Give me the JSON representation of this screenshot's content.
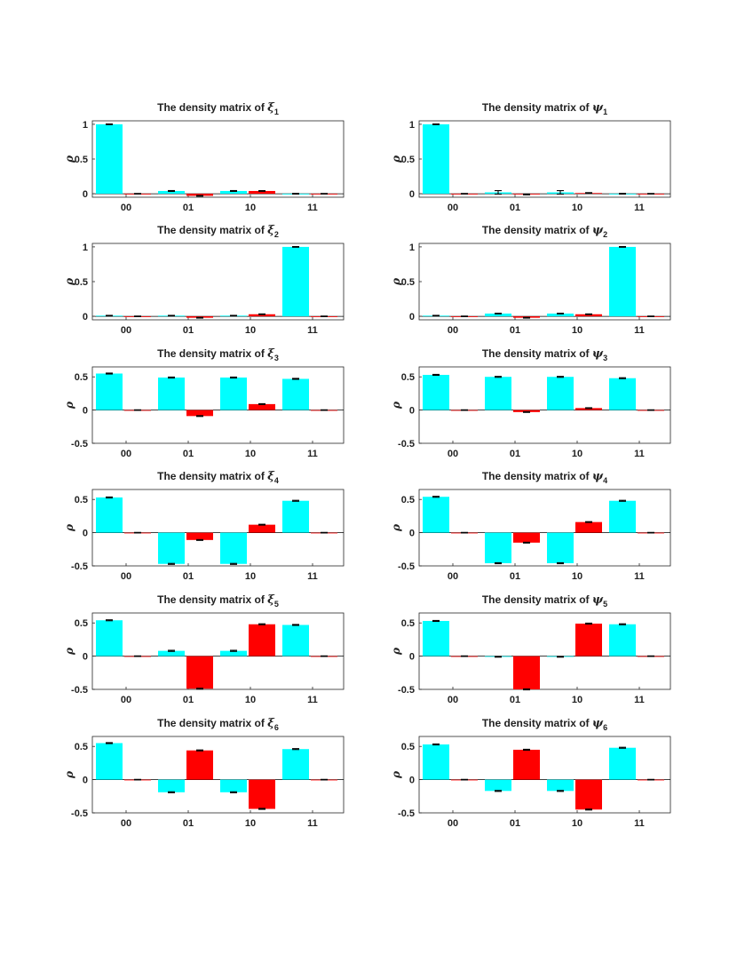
{
  "chart_data": [
    {
      "type": "bar",
      "title_prefix": "The density matrix of ",
      "symbol": "ξ",
      "subscript": "1",
      "ylabel": "ρ",
      "categories": [
        "00",
        "01",
        "10",
        "11"
      ],
      "ylim": [
        -0.05,
        1.05
      ],
      "yticks": [
        "0",
        "0.5",
        "1"
      ],
      "ytick_values": [
        0,
        0.5,
        1
      ],
      "series": [
        {
          "name": "cyan",
          "color": "#00ffff",
          "values": [
            1.0,
            0.04,
            0.04,
            0.0
          ],
          "errors": [
            0.005,
            0.006,
            0.006,
            0.005
          ]
        },
        {
          "name": "red",
          "color": "#ff0000",
          "values": [
            0.0,
            -0.03,
            0.04,
            0.0
          ],
          "errors": [
            0.004,
            0.005,
            0.005,
            0.004
          ]
        }
      ]
    },
    {
      "type": "bar",
      "title_prefix": "The density matrix of ",
      "symbol": "ψ",
      "subscript": "1",
      "ylabel": "ρ",
      "categories": [
        "00",
        "01",
        "10",
        "11"
      ],
      "ylim": [
        -0.05,
        1.05
      ],
      "yticks": [
        "0",
        "0.5",
        "1"
      ],
      "ytick_values": [
        0,
        0.5,
        1
      ],
      "series": [
        {
          "name": "cyan",
          "color": "#00ffff",
          "values": [
            1.0,
            0.02,
            0.02,
            0.0
          ],
          "errors": [
            0.005,
            0.025,
            0.025,
            0.005
          ]
        },
        {
          "name": "red",
          "color": "#ff0000",
          "values": [
            0.0,
            -0.01,
            0.01,
            0.0
          ],
          "errors": [
            0.004,
            0.006,
            0.006,
            0.004
          ]
        }
      ]
    },
    {
      "type": "bar",
      "title_prefix": "The density matrix of ",
      "symbol": "ξ",
      "subscript": "2",
      "ylabel": "ρ",
      "categories": [
        "00",
        "01",
        "10",
        "11"
      ],
      "ylim": [
        -0.05,
        1.05
      ],
      "yticks": [
        "0",
        "0.5",
        "1"
      ],
      "ytick_values": [
        0,
        0.5,
        1
      ],
      "series": [
        {
          "name": "cyan",
          "color": "#00ffff",
          "values": [
            0.01,
            0.01,
            0.01,
            1.0
          ],
          "errors": [
            0.004,
            0.004,
            0.004,
            0.005
          ]
        },
        {
          "name": "red",
          "color": "#ff0000",
          "values": [
            0.0,
            -0.02,
            0.03,
            0.0
          ],
          "errors": [
            0.004,
            0.005,
            0.005,
            0.004
          ]
        }
      ]
    },
    {
      "type": "bar",
      "title_prefix": "The density matrix of ",
      "symbol": "ψ",
      "subscript": "2",
      "ylabel": "ρ",
      "categories": [
        "00",
        "01",
        "10",
        "11"
      ],
      "ylim": [
        -0.05,
        1.05
      ],
      "yticks": [
        "0",
        "0.5",
        "1"
      ],
      "ytick_values": [
        0,
        0.5,
        1
      ],
      "series": [
        {
          "name": "cyan",
          "color": "#00ffff",
          "values": [
            0.01,
            0.04,
            0.04,
            1.0
          ],
          "errors": [
            0.004,
            0.005,
            0.005,
            0.005
          ]
        },
        {
          "name": "red",
          "color": "#ff0000",
          "values": [
            0.0,
            -0.02,
            0.03,
            0.0
          ],
          "errors": [
            0.004,
            0.005,
            0.005,
            0.004
          ]
        }
      ]
    },
    {
      "type": "bar",
      "title_prefix": "The density matrix of ",
      "symbol": "ξ",
      "subscript": "3",
      "ylabel": "ρ",
      "categories": [
        "00",
        "01",
        "10",
        "11"
      ],
      "ylim": [
        -0.5,
        0.65
      ],
      "yticks": [
        "-0.5",
        "0",
        "0.5"
      ],
      "ytick_values": [
        -0.5,
        0,
        0.5
      ],
      "series": [
        {
          "name": "cyan",
          "color": "#00ffff",
          "values": [
            0.55,
            0.49,
            0.49,
            0.47
          ],
          "errors": [
            0.007,
            0.007,
            0.007,
            0.007
          ]
        },
        {
          "name": "red",
          "color": "#ff0000",
          "values": [
            0.0,
            -0.09,
            0.09,
            0.0
          ],
          "errors": [
            0.004,
            0.006,
            0.006,
            0.004
          ]
        }
      ]
    },
    {
      "type": "bar",
      "title_prefix": "The density matrix of ",
      "symbol": "ψ",
      "subscript": "3",
      "ylabel": "ρ",
      "categories": [
        "00",
        "01",
        "10",
        "11"
      ],
      "ylim": [
        -0.5,
        0.65
      ],
      "yticks": [
        "-0.5",
        "0",
        "0.5"
      ],
      "ytick_values": [
        -0.5,
        0,
        0.5
      ],
      "series": [
        {
          "name": "cyan",
          "color": "#00ffff",
          "values": [
            0.53,
            0.5,
            0.5,
            0.48
          ],
          "errors": [
            0.007,
            0.007,
            0.007,
            0.007
          ]
        },
        {
          "name": "red",
          "color": "#ff0000",
          "values": [
            0.0,
            -0.03,
            0.03,
            0.0
          ],
          "errors": [
            0.004,
            0.005,
            0.005,
            0.004
          ]
        }
      ]
    },
    {
      "type": "bar",
      "title_prefix": "The density matrix of ",
      "symbol": "ξ",
      "subscript": "4",
      "ylabel": "ρ",
      "categories": [
        "00",
        "01",
        "10",
        "11"
      ],
      "ylim": [
        -0.5,
        0.65
      ],
      "yticks": [
        "-0.5",
        "0",
        "0.5"
      ],
      "ytick_values": [
        -0.5,
        0,
        0.5
      ],
      "series": [
        {
          "name": "cyan",
          "color": "#00ffff",
          "values": [
            0.53,
            -0.47,
            -0.47,
            0.48
          ],
          "errors": [
            0.007,
            0.007,
            0.007,
            0.007
          ]
        },
        {
          "name": "red",
          "color": "#ff0000",
          "values": [
            0.0,
            -0.11,
            0.12,
            0.0
          ],
          "errors": [
            0.004,
            0.006,
            0.006,
            0.004
          ]
        }
      ]
    },
    {
      "type": "bar",
      "title_prefix": "The density matrix of ",
      "symbol": "ψ",
      "subscript": "4",
      "ylabel": "ρ",
      "categories": [
        "00",
        "01",
        "10",
        "11"
      ],
      "ylim": [
        -0.5,
        0.65
      ],
      "yticks": [
        "-0.5",
        "0",
        "0.5"
      ],
      "ytick_values": [
        -0.5,
        0,
        0.5
      ],
      "series": [
        {
          "name": "cyan",
          "color": "#00ffff",
          "values": [
            0.54,
            -0.46,
            -0.46,
            0.48
          ],
          "errors": [
            0.007,
            0.007,
            0.007,
            0.007
          ]
        },
        {
          "name": "red",
          "color": "#ff0000",
          "values": [
            0.0,
            -0.15,
            0.16,
            0.0
          ],
          "errors": [
            0.004,
            0.006,
            0.006,
            0.004
          ]
        }
      ]
    },
    {
      "type": "bar",
      "title_prefix": "The density matrix of ",
      "symbol": "ξ",
      "subscript": "5",
      "ylabel": "ρ",
      "categories": [
        "00",
        "01",
        "10",
        "11"
      ],
      "ylim": [
        -0.5,
        0.65
      ],
      "yticks": [
        "-0.5",
        "0",
        "0.5"
      ],
      "ytick_values": [
        -0.5,
        0,
        0.5
      ],
      "series": [
        {
          "name": "cyan",
          "color": "#00ffff",
          "values": [
            0.54,
            0.08,
            0.08,
            0.47
          ],
          "errors": [
            0.007,
            0.008,
            0.008,
            0.007
          ]
        },
        {
          "name": "red",
          "color": "#ff0000",
          "values": [
            0.0,
            -0.49,
            0.48,
            0.0
          ],
          "errors": [
            0.004,
            0.007,
            0.007,
            0.004
          ]
        }
      ]
    },
    {
      "type": "bar",
      "title_prefix": "The density matrix of ",
      "symbol": "ψ",
      "subscript": "5",
      "ylabel": "ρ",
      "categories": [
        "00",
        "01",
        "10",
        "11"
      ],
      "ylim": [
        -0.5,
        0.65
      ],
      "yticks": [
        "-0.5",
        "0",
        "0.5"
      ],
      "ytick_values": [
        -0.5,
        0,
        0.5
      ],
      "series": [
        {
          "name": "cyan",
          "color": "#00ffff",
          "values": [
            0.53,
            -0.01,
            -0.01,
            0.48
          ],
          "errors": [
            0.007,
            0.005,
            0.005,
            0.007
          ]
        },
        {
          "name": "red",
          "color": "#ff0000",
          "values": [
            0.0,
            -0.5,
            0.49,
            0.0
          ],
          "errors": [
            0.004,
            0.007,
            0.007,
            0.004
          ]
        }
      ]
    },
    {
      "type": "bar",
      "title_prefix": "The density matrix of ",
      "symbol": "ξ",
      "subscript": "6",
      "ylabel": "ρ",
      "categories": [
        "00",
        "01",
        "10",
        "11"
      ],
      "ylim": [
        -0.5,
        0.65
      ],
      "yticks": [
        "-0.5",
        "0",
        "0.5"
      ],
      "ytick_values": [
        -0.5,
        0,
        0.5
      ],
      "series": [
        {
          "name": "cyan",
          "color": "#00ffff",
          "values": [
            0.55,
            -0.19,
            -0.19,
            0.46
          ],
          "errors": [
            0.007,
            0.007,
            0.007,
            0.007
          ]
        },
        {
          "name": "red",
          "color": "#ff0000",
          "values": [
            0.0,
            0.44,
            -0.44,
            0.0
          ],
          "errors": [
            0.004,
            0.007,
            0.007,
            0.004
          ]
        }
      ]
    },
    {
      "type": "bar",
      "title_prefix": "The density matrix of ",
      "symbol": "ψ",
      "subscript": "6",
      "ylabel": "ρ",
      "categories": [
        "00",
        "01",
        "10",
        "11"
      ],
      "ylim": [
        -0.5,
        0.65
      ],
      "yticks": [
        "-0.5",
        "0",
        "0.5"
      ],
      "ytick_values": [
        -0.5,
        0,
        0.5
      ],
      "series": [
        {
          "name": "cyan",
          "color": "#00ffff",
          "values": [
            0.53,
            -0.17,
            -0.17,
            0.48
          ],
          "errors": [
            0.007,
            0.007,
            0.007,
            0.007
          ]
        },
        {
          "name": "red",
          "color": "#ff0000",
          "values": [
            0.0,
            0.45,
            -0.45,
            0.0
          ],
          "errors": [
            0.004,
            0.007,
            0.007,
            0.004
          ]
        }
      ]
    }
  ]
}
